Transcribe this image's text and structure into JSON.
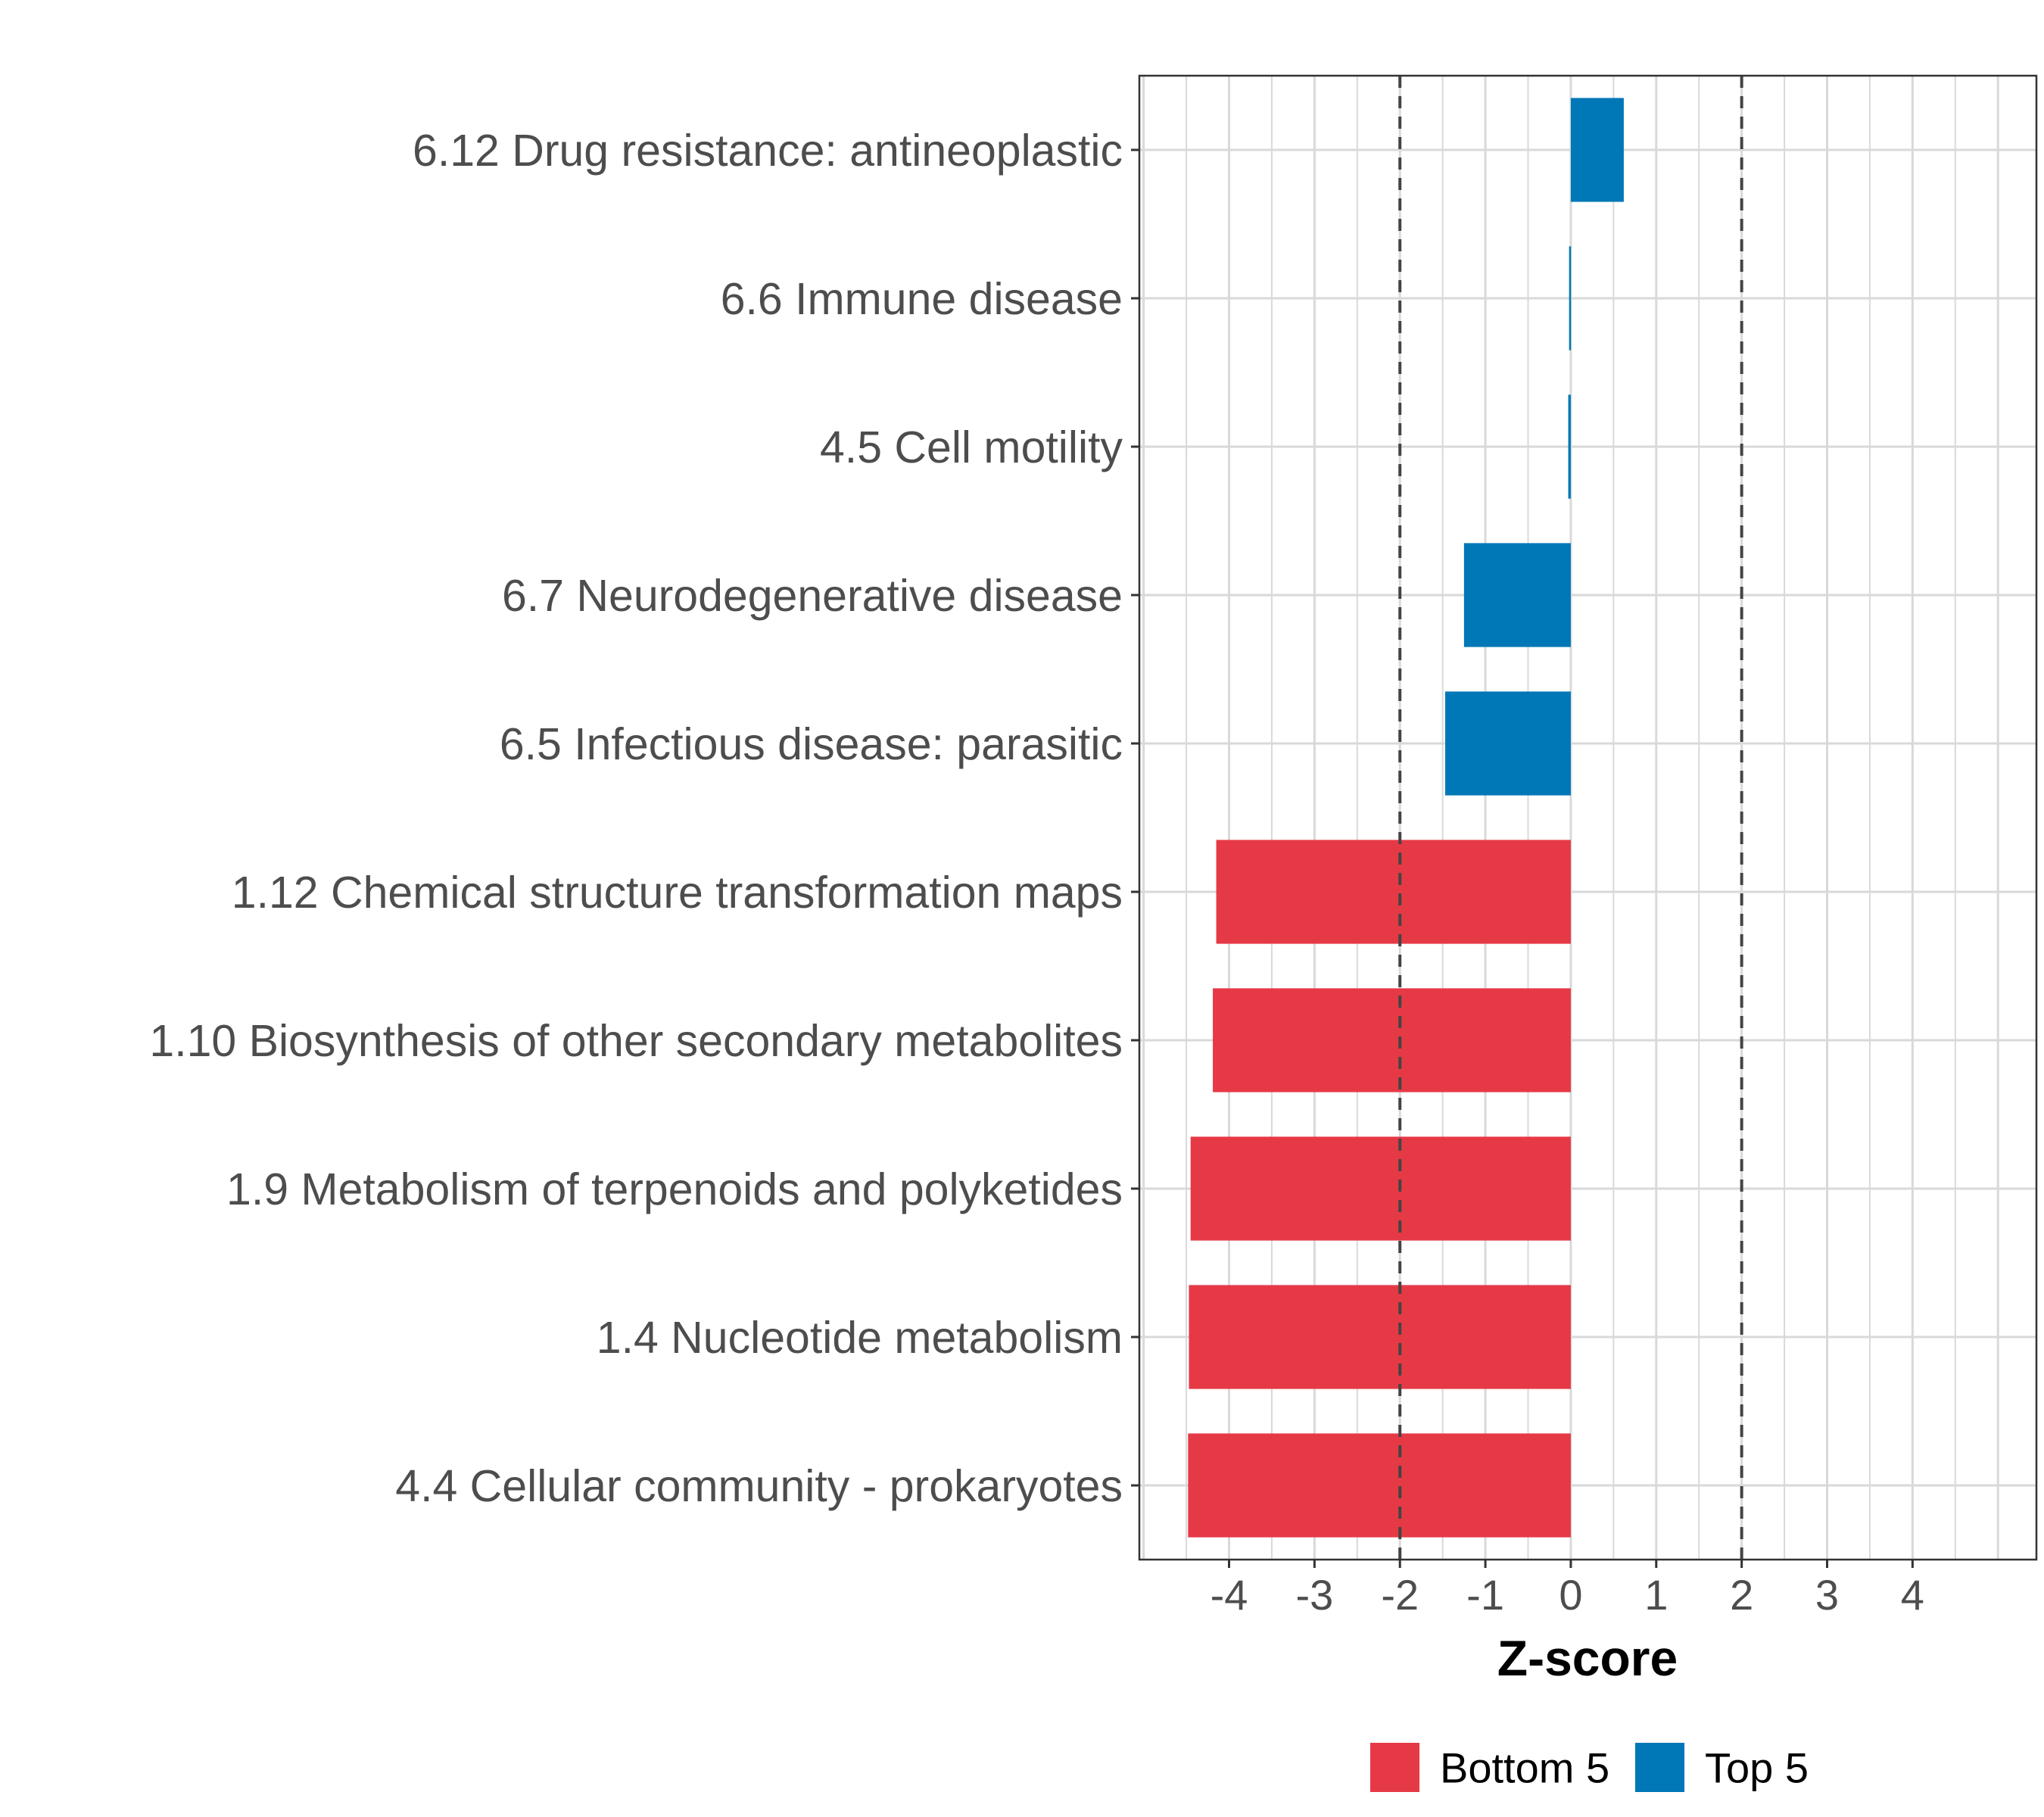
{
  "chart_data": {
    "type": "bar",
    "orientation": "horizontal",
    "title": "",
    "xlabel": "Z-score",
    "ylabel": "",
    "xlim": [
      -5.05,
      5.45
    ],
    "xticks": [
      -4,
      -3,
      -2,
      -1,
      0,
      1,
      2,
      3,
      4
    ],
    "xtick_labels": [
      "-4",
      "-3",
      "-2",
      "-1",
      "0",
      "1",
      "2",
      "3",
      "4"
    ],
    "reference_lines": [
      -2,
      2
    ],
    "grid": true,
    "legend_position": "bottom",
    "categories": [
      "6.12 Drug resistance: antineoplastic",
      "6.6 Immune disease",
      "4.5 Cell motility",
      "6.7 Neurodegenerative disease",
      "6.5 Infectious disease: parasitic",
      "1.12 Chemical structure transformation maps",
      "1.10 Biosynthesis of other secondary metabolites",
      "1.9 Metabolism of terpenoids and polyketides",
      "1.4 Nucleotide metabolism",
      "4.4 Cellular community - prokaryotes"
    ],
    "values": [
      0.62,
      -0.02,
      -0.03,
      -1.25,
      -1.47,
      -4.15,
      -4.19,
      -4.45,
      -4.47,
      -4.48
    ],
    "groups": [
      "Top 5",
      "Top 5",
      "Top 5",
      "Top 5",
      "Top 5",
      "Bottom 5",
      "Bottom 5",
      "Bottom 5",
      "Bottom 5",
      "Bottom 5"
    ],
    "legend": [
      {
        "name": "Bottom 5",
        "color": "#E63946"
      },
      {
        "name": "Top 5",
        "color": "#0077B6"
      }
    ]
  }
}
